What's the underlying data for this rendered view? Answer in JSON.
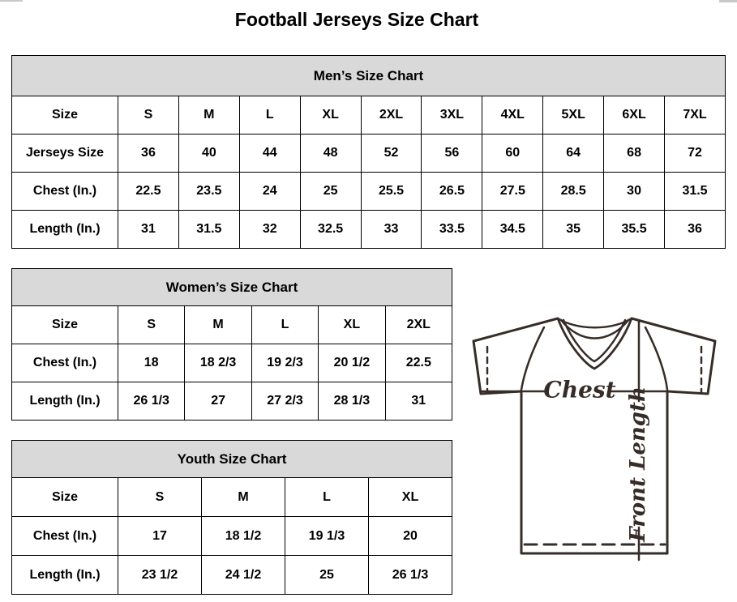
{
  "title": "Football Jerseys Size Chart",
  "tables": {
    "mens": {
      "header": "Men’s Size Chart",
      "rows": [
        [
          "Size",
          "S",
          "M",
          "L",
          "XL",
          "2XL",
          "3XL",
          "4XL",
          "5XL",
          "6XL",
          "7XL"
        ],
        [
          "Jerseys Size",
          "36",
          "40",
          "44",
          "48",
          "52",
          "56",
          "60",
          "64",
          "68",
          "72"
        ],
        [
          "Chest (In.)",
          "22.5",
          "23.5",
          "24",
          "25",
          "25.5",
          "26.5",
          "27.5",
          "28.5",
          "30",
          "31.5"
        ],
        [
          "Length (In.)",
          "31",
          "31.5",
          "32",
          "32.5",
          "33",
          "33.5",
          "34.5",
          "35",
          "35.5",
          "36"
        ]
      ]
    },
    "womens": {
      "header": "Women’s Size Chart",
      "rows": [
        [
          "Size",
          "S",
          "M",
          "L",
          "XL",
          "2XL"
        ],
        [
          "Chest (In.)",
          "18",
          "18 2/3",
          "19 2/3",
          "20 1/2",
          "22.5"
        ],
        [
          "Length (In.)",
          "26 1/3",
          "27",
          "27 2/3",
          "28 1/3",
          "31"
        ]
      ]
    },
    "youth": {
      "header": "Youth Size Chart",
      "rows": [
        [
          "Size",
          "S",
          "M",
          "L",
          "XL"
        ],
        [
          "Chest (In.)",
          "17",
          "18 1/2",
          "19 1/3",
          "20"
        ],
        [
          "Length (In.)",
          "23 1/2",
          "24 1/2",
          "25",
          "26 1/3"
        ]
      ]
    }
  },
  "diagram": {
    "chest_label": "Chest",
    "front_length_label": "Front Length"
  },
  "colors": {
    "header_bg": "#d9d9d9",
    "table_border": "#000000",
    "diagram_ink": "#362c28"
  },
  "chart_data": [
    {
      "type": "table",
      "title": "Men’s Size Chart",
      "columns": [
        "Size",
        "S",
        "M",
        "L",
        "XL",
        "2XL",
        "3XL",
        "4XL",
        "5XL",
        "6XL",
        "7XL"
      ],
      "rows": [
        [
          "Jerseys Size",
          36,
          40,
          44,
          48,
          52,
          56,
          60,
          64,
          68,
          72
        ],
        [
          "Chest (In.)",
          22.5,
          23.5,
          24,
          25,
          25.5,
          26.5,
          27.5,
          28.5,
          30,
          31.5
        ],
        [
          "Length (In.)",
          31,
          31.5,
          32,
          32.5,
          33,
          33.5,
          34.5,
          35,
          35.5,
          36
        ]
      ]
    },
    {
      "type": "table",
      "title": "Women’s Size Chart",
      "columns": [
        "Size",
        "S",
        "M",
        "L",
        "XL",
        "2XL"
      ],
      "rows": [
        [
          "Chest (In.)",
          "18",
          "18 2/3",
          "19 2/3",
          "20 1/2",
          "22.5"
        ],
        [
          "Length (In.)",
          "26 1/3",
          "27",
          "27 2/3",
          "28 1/3",
          "31"
        ]
      ]
    },
    {
      "type": "table",
      "title": "Youth Size Chart",
      "columns": [
        "Size",
        "S",
        "M",
        "L",
        "XL"
      ],
      "rows": [
        [
          "Chest (In.)",
          "17",
          "18 1/2",
          "19 1/3",
          "20"
        ],
        [
          "Length (In.)",
          "23 1/2",
          "24 1/2",
          "25",
          "26 1/3"
        ]
      ]
    }
  ]
}
